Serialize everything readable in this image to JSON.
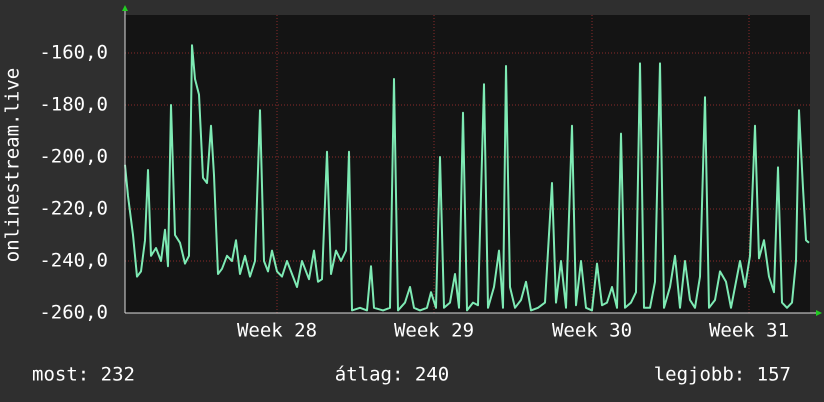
{
  "chart_data": {
    "type": "line",
    "ylabel": "onlinestream.live",
    "x": [
      0,
      3,
      8,
      12,
      16,
      20,
      23,
      26,
      31,
      36,
      40,
      43,
      46,
      50,
      55,
      60,
      64,
      67,
      70,
      74,
      78,
      82,
      86,
      89,
      93,
      97,
      102,
      107,
      111,
      115,
      120,
      125,
      130,
      135,
      139,
      143,
      147,
      152,
      157,
      162,
      167,
      172,
      177,
      180,
      184,
      189,
      193,
      197,
      202,
      206,
      211,
      216,
      221,
      224,
      227,
      235,
      242,
      246,
      249,
      258,
      265,
      269,
      273,
      280,
      285,
      289,
      295,
      302,
      306,
      311,
      315,
      319,
      325,
      330,
      334,
      338,
      342,
      348,
      353,
      359,
      363,
      369,
      374,
      378,
      381,
      385,
      390,
      396,
      401,
      406,
      413,
      420,
      427,
      431,
      436,
      441,
      447,
      451,
      456,
      461,
      467,
      472,
      477,
      482,
      487,
      492,
      496,
      500,
      506,
      511,
      515,
      519,
      525,
      530,
      535,
      539,
      545,
      550,
      555,
      560,
      565,
      570,
      575,
      580,
      584,
      590,
      595,
      601,
      606,
      611,
      615,
      620,
      625,
      630,
      634,
      639,
      644,
      649,
      653,
      657,
      662,
      667,
      671,
      674,
      678,
      681,
      684
    ],
    "values": [
      -203,
      -215,
      -230,
      -246,
      -244,
      -232,
      -205,
      -238,
      -235,
      -240,
      -228,
      -242,
      -180,
      -230,
      -233,
      -241,
      -238,
      -157,
      -170,
      -176,
      -208,
      -210,
      -188,
      -207,
      -245,
      -243,
      -238,
      -240,
      -232,
      -245,
      -238,
      -246,
      -240,
      -182,
      -240,
      -244,
      -236,
      -244,
      -246,
      -240,
      -245,
      -250,
      -240,
      -243,
      -247,
      -236,
      -248,
      -247,
      -198,
      -245,
      -236,
      -240,
      -236,
      -198,
      -259,
      -258,
      -259,
      -242,
      -258,
      -259,
      -258,
      -170,
      -259,
      -256,
      -250,
      -258,
      -259,
      -258,
      -252,
      -258,
      -200,
      -258,
      -256,
      -245,
      -258,
      -183,
      -259,
      -256,
      -257,
      -172,
      -258,
      -250,
      -236,
      -258,
      -165,
      -250,
      -258,
      -255,
      -248,
      -259,
      -258,
      -256,
      -210,
      -256,
      -240,
      -258,
      -188,
      -257,
      -240,
      -258,
      -259,
      -241,
      -257,
      -256,
      -250,
      -258,
      -191,
      -258,
      -256,
      -252,
      -164,
      -258,
      -258,
      -248,
      -164,
      -258,
      -250,
      -238,
      -258,
      -240,
      -255,
      -258,
      -246,
      -177,
      -258,
      -255,
      -244,
      -248,
      -258,
      -248,
      -240,
      -250,
      -238,
      -188,
      -239,
      -232,
      -246,
      -252,
      -204,
      -256,
      -258,
      -256,
      -240,
      -182,
      -212,
      -232,
      -233
    ],
    "color": "#7eeab4",
    "xlim": [
      0,
      685
    ],
    "xticks": [
      {
        "value": 152,
        "label": "Week 28"
      },
      {
        "value": 309,
        "label": "Week 29"
      },
      {
        "value": 467,
        "label": "Week 30"
      },
      {
        "value": 624,
        "label": "Week 31"
      }
    ],
    "ylim": [
      -260,
      -145.4
    ],
    "yticks": [
      {
        "value": -160,
        "label": "-160,0"
      },
      {
        "value": -180,
        "label": "-180,0"
      },
      {
        "value": -200,
        "label": "-200,0"
      },
      {
        "value": -220,
        "label": "-220,0"
      },
      {
        "value": -240,
        "label": "-240,0"
      },
      {
        "value": -260,
        "label": "-260,0"
      }
    ],
    "grid": true,
    "footer": [
      "most: 232",
      "átlag: 240",
      "legjobb: 157"
    ]
  }
}
